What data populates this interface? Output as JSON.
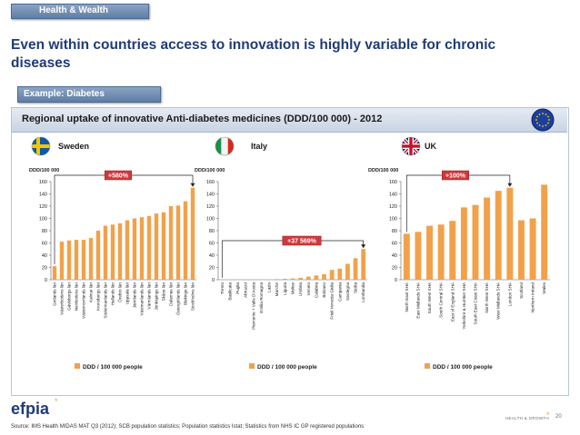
{
  "header": {
    "section_tag": "Health & Wealth",
    "title": "Even within countries access to innovation is highly variable for chronic diseases",
    "example_tag": "Example: Diabetes",
    "panel_title": "Regional uptake of innovative Anti-diabetes medicines (DDD/100 000) - 2012"
  },
  "colors": {
    "bar": "#f2a14a",
    "title": "#1f3b78",
    "tag": "#6f8db4"
  },
  "chart_data": [
    {
      "type": "bar",
      "country": "Sweden",
      "ylabel": "DDD/100 000",
      "ylim": [
        0,
        160
      ],
      "yticks": [
        0,
        20,
        40,
        60,
        80,
        100,
        120,
        140,
        160
      ],
      "legend": "DDD / 100 000 people",
      "annotation": "+580%",
      "categories": [
        "Gotlands län",
        "Västerbottens län",
        "Gävleborgs län",
        "Norrbottens län",
        "Västernorrlands län",
        "Kalmar län",
        "Kronobergs län",
        "Södermanlands län",
        "Hallands län",
        "Örebro län",
        "Uppsala län",
        "Jämtlands län",
        "Västmanlands län",
        "Värmlands län",
        "Jönköpings län",
        "Skåne län",
        "Dalarnas län",
        "Östergötlands län",
        "Blekinge län",
        "Stockholms län"
      ],
      "values": [
        22,
        62,
        64,
        65,
        65,
        68,
        80,
        88,
        90,
        92,
        97,
        100,
        102,
        104,
        108,
        110,
        120,
        121,
        128,
        150
      ]
    },
    {
      "type": "bar",
      "country": "Italy",
      "ylabel": "DDD/100 000",
      "ylim": [
        0,
        160
      ],
      "yticks": [
        0,
        20,
        40,
        60,
        80,
        100,
        120,
        140,
        160
      ],
      "legend": "DDD / 100 000 people",
      "annotation": "+37 569%",
      "categories": [
        "Trento",
        "Basilicata",
        "Puglia",
        "Abruzzo",
        "Piemonte + Valle D'Aosta",
        "Emilia Romagna",
        "Lazio",
        "Marche",
        "Liguria",
        "Molise",
        "Umbria",
        "Veneto",
        "Calabria",
        "Bolzano",
        "Friuli Venezia Giulia",
        "Campania",
        "Sardegna",
        "Sicilia",
        "Lombardia"
      ],
      "values": [
        0.15,
        0.2,
        0.3,
        0.4,
        0.5,
        0.6,
        0.8,
        1,
        1.5,
        2,
        3,
        5,
        7,
        9,
        16,
        18,
        26,
        35,
        50
      ]
    },
    {
      "type": "bar",
      "country": "UK",
      "ylabel": "DDD/100 000",
      "ylim": [
        0,
        160
      ],
      "yticks": [
        0,
        20,
        40,
        60,
        80,
        100,
        120,
        140,
        160
      ],
      "legend": "DDD / 100 000 people",
      "annotation": "+100%",
      "categories": [
        "North East SHA",
        "East Midlands SHA",
        "South West SHA",
        "South Central SHA",
        "East of England SHA",
        "Yorkshire & Humber SHA",
        "South East Coast SHA",
        "North West SHA",
        "West Midlands SHA",
        "London SHA",
        "Scotland",
        "Northern Ireland",
        "Wales"
      ],
      "values": [
        75,
        78,
        88,
        90,
        96,
        118,
        122,
        134,
        145,
        150,
        97,
        100,
        155
      ]
    }
  ],
  "footer": {
    "logo": "efpia",
    "tagline": "HEALTH & GROWTH",
    "page_number": "20",
    "source": "Source: IMS Health MIDAS MAT Q3 (2012); SCB population statistics; Population statistics Istat; Statistics from NHS IC GP registered populations"
  }
}
